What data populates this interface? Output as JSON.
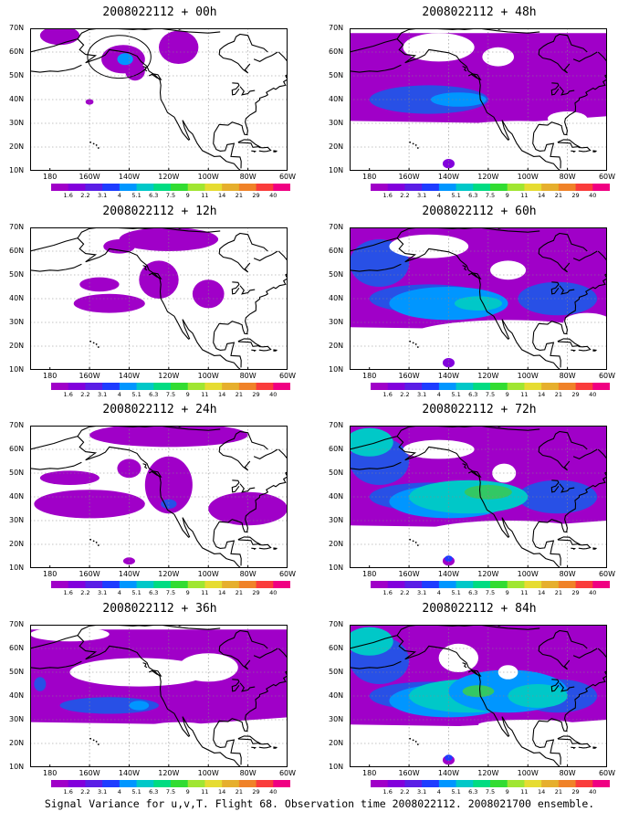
{
  "panels": [
    {
      "title": "2008022112 + 00h",
      "level": 0
    },
    {
      "title": "2008022112 + 48h",
      "level": 4
    },
    {
      "title": "2008022112 + 12h",
      "level": 1
    },
    {
      "title": "2008022112 + 60h",
      "level": 5
    },
    {
      "title": "2008022112 + 24h",
      "level": 2
    },
    {
      "title": "2008022112 + 72h",
      "level": 6
    },
    {
      "title": "2008022112 + 36h",
      "level": 3
    },
    {
      "title": "2008022112 + 84h",
      "level": 7
    }
  ],
  "lat_labels": [
    "70N",
    "60N",
    "50N",
    "40N",
    "30N",
    "20N",
    "10N"
  ],
  "lon_labels": [
    "180",
    "160W",
    "140W",
    "120W",
    "100W",
    "80W",
    "60W"
  ],
  "colorbar": {
    "labels": [
      "1.6",
      "2.2",
      "3.1",
      "4",
      "5.1",
      "6.3",
      "7.5",
      "9",
      "11",
      "14",
      "21",
      "29",
      "40"
    ],
    "colors": [
      "#a000c8",
      "#8200dc",
      "#5a1ee6",
      "#1e3cff",
      "#0096ff",
      "#00c8c8",
      "#00dc82",
      "#32dc32",
      "#a0e632",
      "#e6dc32",
      "#e6af2d",
      "#f08228",
      "#fa3c3c",
      "#f00082"
    ]
  },
  "caption": "Signal Variance for u,v,T. Flight 68. Observation time 2008022112. 2008021700 ensemble."
}
